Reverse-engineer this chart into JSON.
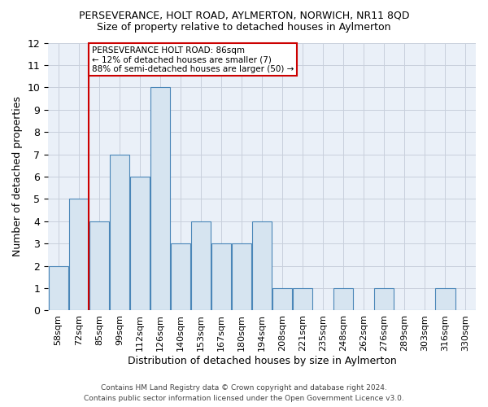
{
  "title": "PERSEVERANCE, HOLT ROAD, AYLMERTON, NORWICH, NR11 8QD",
  "subtitle": "Size of property relative to detached houses in Aylmerton",
  "xlabel": "Distribution of detached houses by size in Aylmerton",
  "ylabel": "Number of detached properties",
  "footer_line1": "Contains HM Land Registry data © Crown copyright and database right 2024.",
  "footer_line2": "Contains public sector information licensed under the Open Government Licence v3.0.",
  "categories": [
    "58sqm",
    "72sqm",
    "85sqm",
    "99sqm",
    "112sqm",
    "126sqm",
    "140sqm",
    "153sqm",
    "167sqm",
    "180sqm",
    "194sqm",
    "208sqm",
    "221sqm",
    "235sqm",
    "248sqm",
    "262sqm",
    "276sqm",
    "289sqm",
    "303sqm",
    "316sqm",
    "330sqm"
  ],
  "values": [
    2,
    5,
    4,
    7,
    6,
    10,
    3,
    4,
    3,
    3,
    4,
    1,
    1,
    0,
    1,
    0,
    1,
    0,
    0,
    1,
    0
  ],
  "bar_color": "#d6e4f0",
  "bar_edge_color": "#4a86b8",
  "grid_color": "#c8d0dc",
  "vline_color": "#cc0000",
  "vline_x_idx": 2,
  "annotation_text_line1": "PERSEVERANCE HOLT ROAD: 86sqm",
  "annotation_text_line2": "← 12% of detached houses are smaller (7)",
  "annotation_text_line3": "88% of semi-detached houses are larger (50) →",
  "annotation_box_color": "#cc0000",
  "ylim": [
    0,
    12
  ],
  "yticks": [
    0,
    1,
    2,
    3,
    4,
    5,
    6,
    7,
    8,
    9,
    10,
    11,
    12
  ],
  "background_color": "#ffffff",
  "plot_bg_color": "#eaf0f8"
}
